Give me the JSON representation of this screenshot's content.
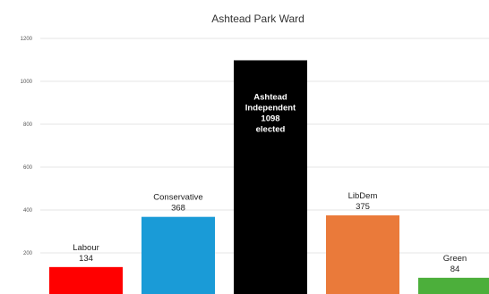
{
  "chart_data": {
    "type": "bar",
    "title": "Ashtead Park Ward",
    "xlabel": "",
    "ylabel": "",
    "ylim": [
      0,
      1200
    ],
    "yticks": [
      0,
      200,
      400,
      600,
      800,
      1000,
      1200
    ],
    "grid": true,
    "legend": "none",
    "categories": [
      "Labour",
      "Conservative",
      "Ashtead Independent",
      "LibDem",
      "Green"
    ],
    "values": [
      134,
      368,
      1098,
      375,
      84
    ],
    "bar_labels": [
      [
        "Labour",
        "134"
      ],
      [
        "Conservative",
        "368"
      ],
      [
        "Ashtead",
        "Independent",
        "1098",
        "elected"
      ],
      [
        "LibDem",
        "375"
      ],
      [
        "Green",
        "84"
      ]
    ],
    "colors": [
      "#ff0000",
      "#1a9bd7",
      "#000000",
      "#ea7a3a",
      "#4caf3b"
    ]
  }
}
